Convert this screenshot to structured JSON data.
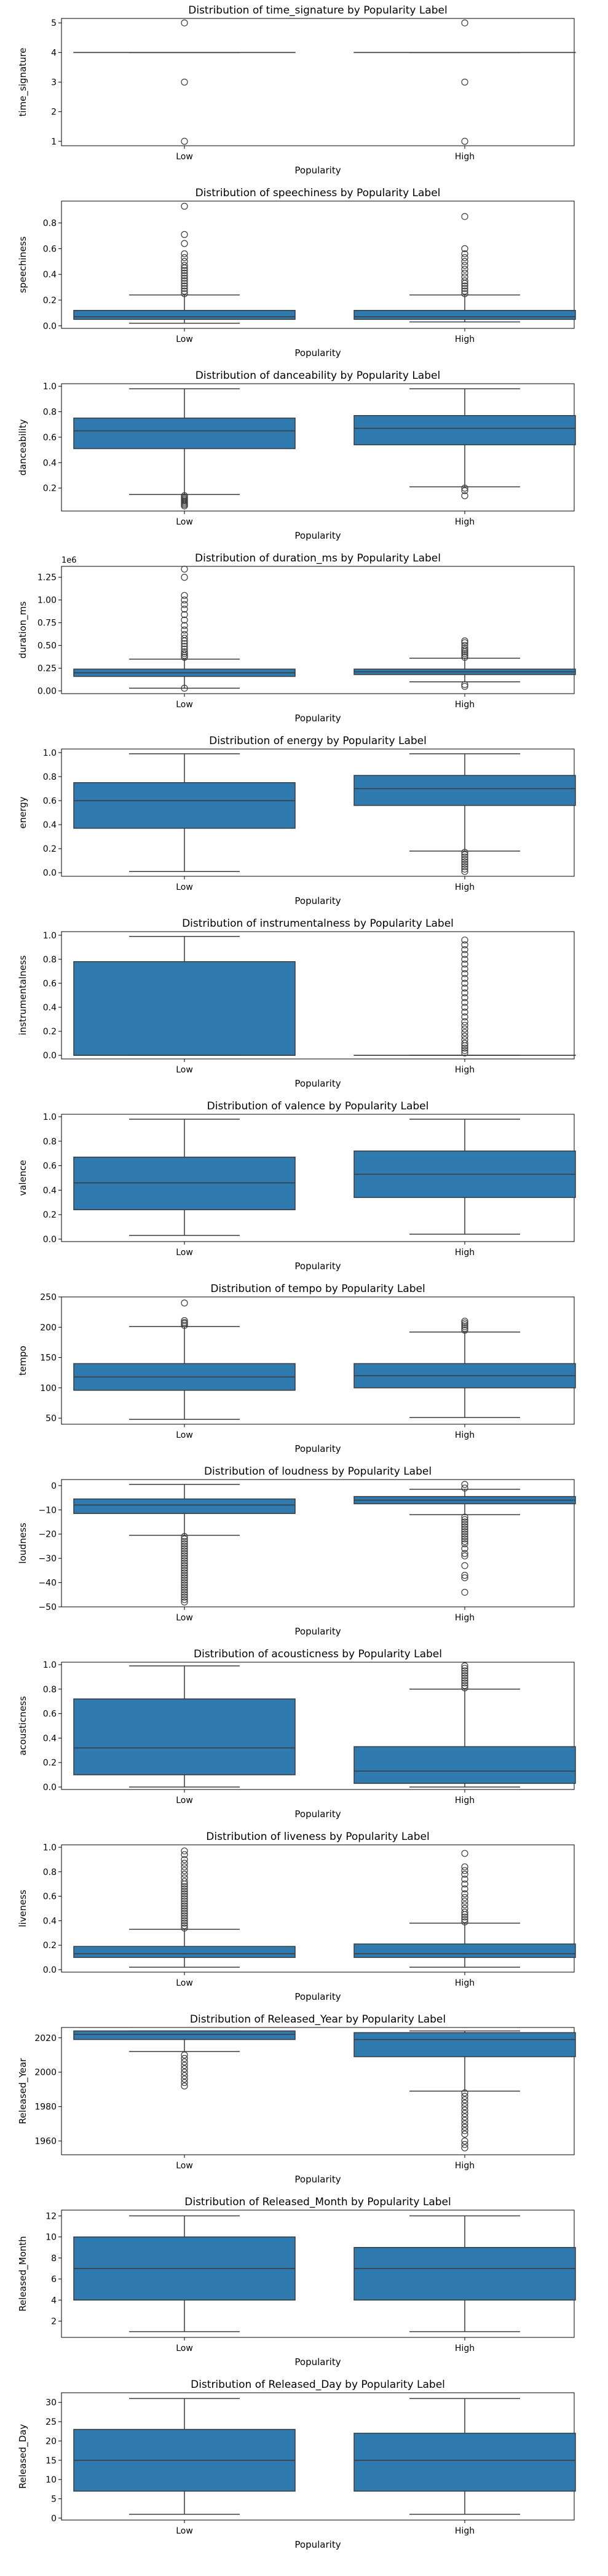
{
  "chart_data": [
    {
      "type": "box",
      "title": "Distribution of time_signature by Popularity Label",
      "xlabel": "Popularity",
      "ylabel": "time_signature",
      "categories": [
        "Low",
        "High"
      ],
      "ylim": [
        0.85,
        5.15
      ],
      "yticks": [
        1,
        2,
        3,
        4,
        5
      ],
      "yticklabels": [
        "1",
        "2",
        "3",
        "4",
        "5"
      ],
      "boxes": [
        {
          "q1": 4,
          "median": 4,
          "q3": 4,
          "whislo": 4,
          "whishi": 4,
          "outliers": [
            1,
            3,
            5
          ]
        },
        {
          "q1": 4,
          "median": 4,
          "q3": 4,
          "whislo": 4,
          "whishi": 4,
          "outliers": [
            1,
            3,
            5
          ]
        }
      ]
    },
    {
      "type": "box",
      "title": "Distribution of speechiness by Popularity Label",
      "xlabel": "Popularity",
      "ylabel": "speechiness",
      "categories": [
        "Low",
        "High"
      ],
      "ylim": [
        -0.02,
        0.97
      ],
      "yticks": [
        0,
        0.2,
        0.4,
        0.6,
        0.8
      ],
      "yticklabels": [
        "0.0",
        "0.2",
        "0.4",
        "0.6",
        "0.8"
      ],
      "boxes": [
        {
          "q1": 0.05,
          "median": 0.07,
          "q3": 0.12,
          "whislo": 0.02,
          "whishi": 0.24,
          "outliers": [
            0.25,
            0.27,
            0.29,
            0.31,
            0.33,
            0.35,
            0.37,
            0.39,
            0.41,
            0.43,
            0.45,
            0.47,
            0.5,
            0.53,
            0.56,
            0.64,
            0.71,
            0.93
          ]
        },
        {
          "q1": 0.05,
          "median": 0.07,
          "q3": 0.12,
          "whislo": 0.03,
          "whishi": 0.24,
          "outliers": [
            0.25,
            0.27,
            0.29,
            0.31,
            0.33,
            0.35,
            0.38,
            0.41,
            0.44,
            0.47,
            0.5,
            0.53,
            0.56,
            0.6,
            0.85
          ]
        }
      ]
    },
    {
      "type": "box",
      "title": "Distribution of danceability by Popularity Label",
      "xlabel": "Popularity",
      "ylabel": "danceability",
      "categories": [
        "Low",
        "High"
      ],
      "ylim": [
        0.02,
        1.02
      ],
      "yticks": [
        0.2,
        0.4,
        0.6,
        0.8,
        1.0
      ],
      "yticklabels": [
        "0.2",
        "0.4",
        "0.6",
        "0.8",
        "1.0"
      ],
      "boxes": [
        {
          "q1": 0.51,
          "median": 0.65,
          "q3": 0.75,
          "whislo": 0.15,
          "whishi": 0.98,
          "outliers": [
            0.06,
            0.07,
            0.08,
            0.09,
            0.1,
            0.11,
            0.12,
            0.13,
            0.14
          ]
        },
        {
          "q1": 0.54,
          "median": 0.67,
          "q3": 0.77,
          "whislo": 0.21,
          "whishi": 0.98,
          "outliers": [
            0.14,
            0.18,
            0.2
          ]
        }
      ]
    },
    {
      "type": "box",
      "title": "Distribution of duration_ms by Popularity Label",
      "xlabel": "Popularity",
      "ylabel": "duration_ms",
      "y_scale_label": "1e6",
      "categories": [
        "Low",
        "High"
      ],
      "ylim": [
        -0.03,
        1.37
      ],
      "yticks": [
        0,
        0.25,
        0.5,
        0.75,
        1.0,
        1.25
      ],
      "yticklabels": [
        "0.00",
        "0.25",
        "0.50",
        "0.75",
        "1.00",
        "1.25"
      ],
      "boxes": [
        {
          "q1": 0.16,
          "median": 0.2,
          "q3": 0.24,
          "whislo": 0.03,
          "whishi": 0.35,
          "outliers": [
            0.03,
            0.37,
            0.39,
            0.41,
            0.43,
            0.46,
            0.49,
            0.52,
            0.55,
            0.58,
            0.62,
            0.67,
            0.72,
            0.78,
            0.84,
            0.9,
            0.95,
            1.0,
            1.05,
            1.25,
            1.34
          ]
        },
        {
          "q1": 0.18,
          "median": 0.21,
          "q3": 0.24,
          "whislo": 0.1,
          "whishi": 0.36,
          "outliers": [
            0.05,
            0.07,
            0.37,
            0.39,
            0.41,
            0.43,
            0.45,
            0.47,
            0.5,
            0.53,
            0.55
          ]
        }
      ]
    },
    {
      "type": "box",
      "title": "Distribution of energy by Popularity Label",
      "xlabel": "Popularity",
      "ylabel": "energy",
      "categories": [
        "Low",
        "High"
      ],
      "ylim": [
        -0.03,
        1.03
      ],
      "yticks": [
        0,
        0.2,
        0.4,
        0.6,
        0.8,
        1.0
      ],
      "yticklabels": [
        "0.0",
        "0.2",
        "0.4",
        "0.6",
        "0.8",
        "1.0"
      ],
      "boxes": [
        {
          "q1": 0.37,
          "median": 0.6,
          "q3": 0.75,
          "whislo": 0.01,
          "whishi": 0.99,
          "outliers": []
        },
        {
          "q1": 0.56,
          "median": 0.7,
          "q3": 0.81,
          "whislo": 0.18,
          "whishi": 0.99,
          "outliers": [
            0.01,
            0.03,
            0.05,
            0.07,
            0.09,
            0.11,
            0.13,
            0.15,
            0.17
          ]
        }
      ]
    },
    {
      "type": "box",
      "title": "Distribution of instrumentalness by Popularity Label",
      "xlabel": "Popularity",
      "ylabel": "instrumentalness",
      "categories": [
        "Low",
        "High"
      ],
      "ylim": [
        -0.03,
        1.03
      ],
      "yticks": [
        0,
        0.2,
        0.4,
        0.6,
        0.8,
        1.0
      ],
      "yticklabels": [
        "0.0",
        "0.2",
        "0.4",
        "0.6",
        "0.8",
        "1.0"
      ],
      "boxes": [
        {
          "q1": 0.0,
          "median": 0.0,
          "q3": 0.78,
          "whislo": 0.0,
          "whishi": 0.99,
          "outliers": []
        },
        {
          "q1": 0.0,
          "median": 0.0,
          "q3": 0.0,
          "whislo": 0.0,
          "whishi": 0.0,
          "outliers": [
            0.02,
            0.04,
            0.06,
            0.08,
            0.1,
            0.13,
            0.16,
            0.19,
            0.22,
            0.25,
            0.28,
            0.32,
            0.36,
            0.4,
            0.44,
            0.48,
            0.52,
            0.56,
            0.6,
            0.64,
            0.68,
            0.72,
            0.76,
            0.8,
            0.84,
            0.88,
            0.92,
            0.96
          ]
        }
      ]
    },
    {
      "type": "box",
      "title": "Distribution of valence by Popularity Label",
      "xlabel": "Popularity",
      "ylabel": "valence",
      "categories": [
        "Low",
        "High"
      ],
      "ylim": [
        -0.02,
        1.02
      ],
      "yticks": [
        0,
        0.2,
        0.4,
        0.6,
        0.8,
        1.0
      ],
      "yticklabels": [
        "0.0",
        "0.2",
        "0.4",
        "0.6",
        "0.8",
        "1.0"
      ],
      "boxes": [
        {
          "q1": 0.24,
          "median": 0.46,
          "q3": 0.67,
          "whislo": 0.03,
          "whishi": 0.98,
          "outliers": []
        },
        {
          "q1": 0.34,
          "median": 0.53,
          "q3": 0.72,
          "whislo": 0.04,
          "whishi": 0.98,
          "outliers": []
        }
      ]
    },
    {
      "type": "box",
      "title": "Distribution of tempo by Popularity Label",
      "xlabel": "Popularity",
      "ylabel": "tempo",
      "categories": [
        "Low",
        "High"
      ],
      "ylim": [
        40,
        250
      ],
      "yticks": [
        50,
        100,
        150,
        200,
        250
      ],
      "yticklabels": [
        "50",
        "100",
        "150",
        "200",
        "250"
      ],
      "boxes": [
        {
          "q1": 96,
          "median": 118,
          "q3": 140,
          "whislo": 48,
          "whishi": 201,
          "outliers": [
            203,
            206,
            208,
            211,
            240
          ]
        },
        {
          "q1": 100,
          "median": 120,
          "q3": 140,
          "whislo": 51,
          "whishi": 192,
          "outliers": [
            195,
            198,
            201,
            204,
            207,
            210
          ]
        }
      ]
    },
    {
      "type": "box",
      "title": "Distribution of loudness by Popularity Label",
      "xlabel": "Popularity",
      "ylabel": "loudness",
      "categories": [
        "Low",
        "High"
      ],
      "ylim": [
        -50,
        2.5
      ],
      "yticks": [
        -50,
        -40,
        -30,
        -20,
        -10,
        0
      ],
      "yticklabels": [
        "−50",
        "−40",
        "−30",
        "−20",
        "−10",
        "0"
      ],
      "boxes": [
        {
          "q1": -11.5,
          "median": -8,
          "q3": -5.5,
          "whislo": -20.5,
          "whishi": 0.5,
          "outliers": [
            -21,
            -22,
            -23,
            -24,
            -25,
            -26,
            -27,
            -28,
            -29,
            -30,
            -31,
            -32,
            -33,
            -34,
            -35,
            -36,
            -37,
            -38,
            -39,
            -40,
            -41,
            -42,
            -43,
            -44,
            -45,
            -46,
            -47,
            -48
          ]
        },
        {
          "q1": -7.5,
          "median": -6,
          "q3": -4.5,
          "whislo": -12,
          "whishi": -1.5,
          "outliers": [
            -13,
            -14,
            -15,
            -16,
            -17,
            -18,
            -19,
            -20,
            -21,
            -22,
            -23,
            -24,
            -26,
            -28,
            -29,
            -33,
            -37,
            -38,
            -44,
            -1,
            0.5
          ]
        }
      ]
    },
    {
      "type": "box",
      "title": "Distribution of acousticness by Popularity Label",
      "xlabel": "Popularity",
      "ylabel": "acousticness",
      "categories": [
        "Low",
        "High"
      ],
      "ylim": [
        -0.02,
        1.02
      ],
      "yticks": [
        0,
        0.2,
        0.4,
        0.6,
        0.8,
        1.0
      ],
      "yticklabels": [
        "0.0",
        "0.2",
        "0.4",
        "0.6",
        "0.8",
        "1.0"
      ],
      "boxes": [
        {
          "q1": 0.1,
          "median": 0.32,
          "q3": 0.72,
          "whislo": 0.0,
          "whishi": 0.99,
          "outliers": []
        },
        {
          "q1": 0.03,
          "median": 0.13,
          "q3": 0.33,
          "whislo": 0.0,
          "whishi": 0.8,
          "outliers": [
            0.81,
            0.83,
            0.85,
            0.87,
            0.89,
            0.91,
            0.93,
            0.95,
            0.97,
            0.99
          ]
        }
      ]
    },
    {
      "type": "box",
      "title": "Distribution of liveness by Popularity Label",
      "xlabel": "Popularity",
      "ylabel": "liveness",
      "categories": [
        "Low",
        "High"
      ],
      "ylim": [
        -0.02,
        1.02
      ],
      "yticks": [
        0,
        0.2,
        0.4,
        0.6,
        0.8,
        1.0
      ],
      "yticklabels": [
        "0.0",
        "0.2",
        "0.4",
        "0.6",
        "0.8",
        "1.0"
      ],
      "boxes": [
        {
          "q1": 0.1,
          "median": 0.13,
          "q3": 0.19,
          "whislo": 0.02,
          "whishi": 0.33,
          "outliers": [
            0.34,
            0.36,
            0.38,
            0.4,
            0.42,
            0.44,
            0.46,
            0.48,
            0.5,
            0.52,
            0.54,
            0.56,
            0.58,
            0.6,
            0.62,
            0.64,
            0.66,
            0.68,
            0.7,
            0.72,
            0.75,
            0.78,
            0.81,
            0.84,
            0.87,
            0.9,
            0.94,
            0.97
          ]
        },
        {
          "q1": 0.1,
          "median": 0.13,
          "q3": 0.21,
          "whislo": 0.02,
          "whishi": 0.38,
          "outliers": [
            0.39,
            0.41,
            0.43,
            0.45,
            0.47,
            0.5,
            0.53,
            0.56,
            0.59,
            0.62,
            0.66,
            0.7,
            0.74,
            0.78,
            0.81,
            0.84,
            0.95
          ]
        }
      ]
    },
    {
      "type": "box",
      "title": "Distribution of Released_Year by Popularity Label",
      "xlabel": "Popularity",
      "ylabel": "Released_Year",
      "categories": [
        "Low",
        "High"
      ],
      "ylim": [
        1952,
        2026
      ],
      "yticks": [
        1960,
        1980,
        2000,
        2020
      ],
      "yticklabels": [
        "1960",
        "1980",
        "2000",
        "2020"
      ],
      "boxes": [
        {
          "q1": 2019,
          "median": 2022,
          "q3": 2024,
          "whislo": 2012,
          "whishi": 2024,
          "outliers": [
            1992,
            1994,
            1996,
            1998,
            2000,
            2002,
            2004,
            2006,
            2008,
            2010
          ]
        },
        {
          "q1": 2009,
          "median": 2019,
          "q3": 2023,
          "whislo": 1989,
          "whishi": 2024,
          "outliers": [
            1956,
            1958,
            1960,
            1964,
            1966,
            1968,
            1970,
            1972,
            1974,
            1976,
            1978,
            1980,
            1982,
            1984,
            1986,
            1988
          ]
        }
      ]
    },
    {
      "type": "box",
      "title": "Distribution of Released_Month by Popularity Label",
      "xlabel": "Popularity",
      "ylabel": "Released_Month",
      "categories": [
        "Low",
        "High"
      ],
      "ylim": [
        0.45,
        12.55
      ],
      "yticks": [
        2,
        4,
        6,
        8,
        10,
        12
      ],
      "yticklabels": [
        "2",
        "4",
        "6",
        "8",
        "10",
        "12"
      ],
      "boxes": [
        {
          "q1": 4,
          "median": 7,
          "q3": 10,
          "whislo": 1,
          "whishi": 12,
          "outliers": []
        },
        {
          "q1": 4,
          "median": 7,
          "q3": 9,
          "whislo": 1,
          "whishi": 12,
          "outliers": []
        }
      ]
    },
    {
      "type": "box",
      "title": "Distribution of Released_Day by Popularity Label",
      "xlabel": "Popularity",
      "ylabel": "Released_Day",
      "categories": [
        "Low",
        "High"
      ],
      "ylim": [
        -0.5,
        32.5
      ],
      "yticks": [
        0,
        5,
        10,
        15,
        20,
        25,
        30
      ],
      "yticklabels": [
        "0",
        "5",
        "10",
        "15",
        "20",
        "25",
        "30"
      ],
      "boxes": [
        {
          "q1": 7,
          "median": 15,
          "q3": 23,
          "whislo": 1,
          "whishi": 31,
          "outliers": []
        },
        {
          "q1": 7,
          "median": 15,
          "q3": 22,
          "whislo": 1,
          "whishi": 31,
          "outliers": []
        }
      ]
    }
  ],
  "style": {
    "box_fill": "#2f7bb0",
    "line_color": "#3b3b3b",
    "axis_color": "#000000"
  }
}
